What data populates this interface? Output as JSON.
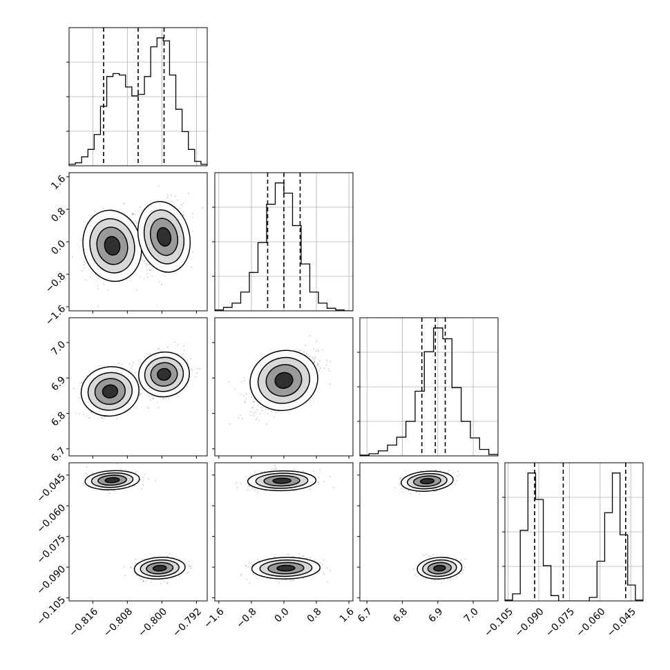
{
  "chart_data": {
    "type": "corner",
    "grid": true,
    "parameters": [
      {
        "range": [
          -0.8215,
          -0.7895
        ],
        "ticks": [
          -0.816,
          -0.808,
          -0.8,
          -0.792
        ],
        "tick_labels": [
          "−0.816",
          "−0.808",
          "−0.800",
          "−0.792"
        ],
        "quantiles": [
          -0.8135,
          -0.8055,
          -0.7995
        ]
      },
      {
        "range": [
          -1.7,
          1.7
        ],
        "ticks": [
          -1.6,
          -0.8,
          0.0,
          0.8,
          1.6
        ],
        "tick_labels": [
          "−1.6",
          "−0.8",
          "0.0",
          "0.8",
          "1.6"
        ],
        "quantiles": [
          -0.4,
          0.0,
          0.4
        ]
      },
      {
        "range": [
          6.68,
          7.07
        ],
        "ticks": [
          6.7,
          6.8,
          6.9,
          7.0
        ],
        "tick_labels": [
          "6.7",
          "6.8",
          "6.9",
          "7.0"
        ],
        "quantiles": [
          6.855,
          6.893,
          6.921
        ]
      },
      {
        "range": [
          -0.1065,
          -0.039
        ],
        "ticks": [
          -0.105,
          -0.09,
          -0.075,
          -0.06,
          -0.045
        ],
        "tick_labels": [
          "−0.105",
          "−0.090",
          "−0.075",
          "−0.060",
          "−0.045"
        ],
        "quantiles": [
          -0.092,
          -0.078,
          -0.0475
        ]
      }
    ],
    "histograms": [
      [
        1,
        2,
        6,
        11,
        21,
        40,
        60,
        62,
        61,
        53,
        47,
        48,
        60,
        80,
        86,
        84,
        61,
        38,
        23,
        11,
        3,
        1
      ],
      [
        1,
        4,
        9,
        22,
        45,
        80,
        125,
        150,
        138,
        100,
        55,
        22,
        9,
        3,
        1,
        0
      ],
      [
        1,
        3,
        7,
        15,
        26,
        48,
        90,
        145,
        178,
        163,
        95,
        48,
        25,
        9,
        2
      ],
      [
        1,
        8,
        80,
        145,
        115,
        40,
        6,
        0,
        0,
        0,
        0,
        4,
        45,
        100,
        145,
        75,
        18,
        1
      ]
    ],
    "scatter_blobs": {
      "1-0": [
        {
          "mx": -0.8115,
          "my": -0.1,
          "sx": 0.0032,
          "sy": 0.42,
          "rho": 0.3,
          "w": 0.4
        },
        {
          "mx": -0.7995,
          "my": 0.12,
          "sx": 0.0028,
          "sy": 0.42,
          "rho": 0.3,
          "w": 0.6
        }
      ],
      "2-0": [
        {
          "mx": -0.812,
          "my": 6.862,
          "sx": 0.0032,
          "sy": 0.033,
          "rho": 0.3,
          "w": 0.4
        },
        {
          "mx": -0.7995,
          "my": 6.91,
          "sx": 0.0028,
          "sy": 0.03,
          "rho": 0.3,
          "w": 0.6
        }
      ],
      "2-1": [
        {
          "mx": 0.0,
          "my": 6.893,
          "sx": 0.4,
          "sy": 0.04,
          "rho": 0.55,
          "w": 1.0
        }
      ],
      "3-0": [
        {
          "mx": -0.8115,
          "my": -0.0475,
          "sx": 0.003,
          "sy": 0.0022,
          "rho": 0.25,
          "w": 0.45
        },
        {
          "mx": -0.8005,
          "my": -0.0905,
          "sx": 0.0028,
          "sy": 0.0025,
          "rho": 0.2,
          "w": 0.55
        }
      ],
      "3-1": [
        {
          "mx": -0.05,
          "my": -0.0478,
          "sx": 0.4,
          "sy": 0.0023,
          "rho": 0.1,
          "w": 0.45
        },
        {
          "mx": 0.05,
          "my": -0.0905,
          "sx": 0.4,
          "sy": 0.0025,
          "rho": 0.1,
          "w": 0.55
        }
      ],
      "3-2": [
        {
          "mx": 6.87,
          "my": -0.048,
          "sx": 0.035,
          "sy": 0.0023,
          "rho": 0.3,
          "w": 0.45
        },
        {
          "mx": 6.905,
          "my": -0.0905,
          "sx": 0.03,
          "sy": 0.0025,
          "rho": 0.2,
          "w": 0.55
        }
      ]
    }
  }
}
